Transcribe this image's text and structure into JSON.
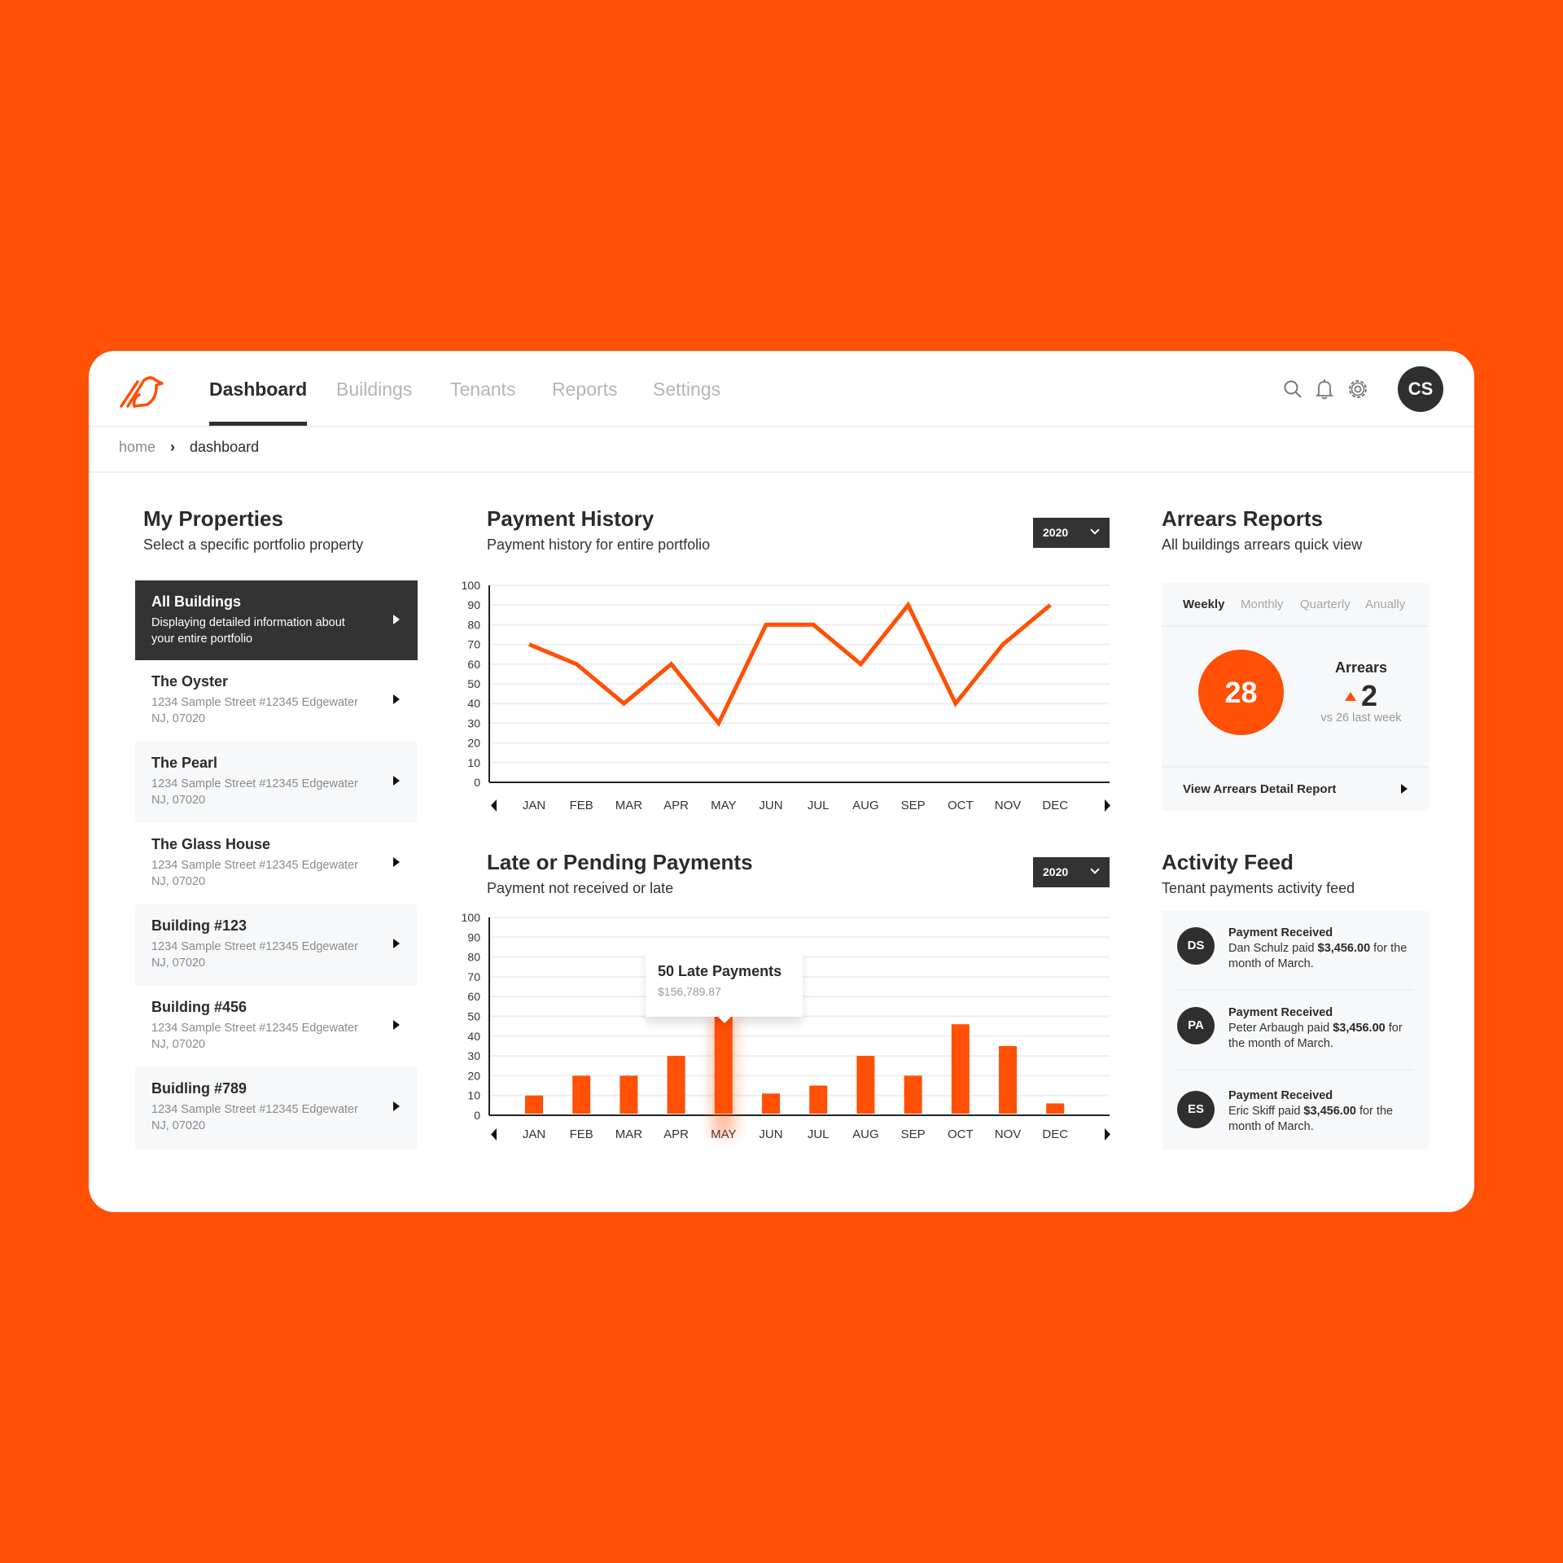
{
  "nav": {
    "tabs": [
      "Dashboard",
      "Buildings",
      "Tenants",
      "Reports",
      "Settings"
    ],
    "active": "Dashboard",
    "avatar": "CS",
    "icons": [
      "search-icon",
      "bell-icon",
      "gear-icon"
    ]
  },
  "breadcrumb": {
    "home": "home",
    "current": "dashboard"
  },
  "properties": {
    "title": "My Properties",
    "subtitle": "Select a specific portfolio property",
    "items": [
      {
        "name": "All Buildings",
        "desc": "Displaying detailed information about your entire portfolio"
      },
      {
        "name": "The Oyster",
        "desc": "1234 Sample Street #12345 Edgewater NJ, 07020"
      },
      {
        "name": "The Pearl",
        "desc": "1234 Sample Street #12345 Edgewater NJ, 07020"
      },
      {
        "name": "The Glass House",
        "desc": "1234 Sample Street #12345 Edgewater NJ, 07020"
      },
      {
        "name": "Building #123",
        "desc": "1234 Sample Street #12345 Edgewater NJ, 07020"
      },
      {
        "name": "Building #456",
        "desc": "1234 Sample Street #12345 Edgewater NJ, 07020"
      },
      {
        "name": "Buidling #789",
        "desc": "1234 Sample Street #12345 Edgewater NJ, 07020"
      }
    ]
  },
  "payment_history": {
    "title": "Payment History",
    "subtitle": "Payment history for entire portfolio",
    "year": "2020"
  },
  "late_payments": {
    "title": "Late or Pending Payments",
    "subtitle": "Payment not received or late",
    "year": "2020",
    "tooltip": {
      "title": "50 Late Payments",
      "amount": "$156,789.87"
    }
  },
  "arrears": {
    "title": "Arrears Reports",
    "subtitle": "All buildings arrears quick view",
    "tabs": [
      "Weekly",
      "Monthly",
      "Quarterly",
      "Anually"
    ],
    "active_tab": "Weekly",
    "count": "28",
    "label": "Arrears",
    "delta": "2",
    "comparison": "vs 26 last week",
    "link": "View Arrears Detail Report"
  },
  "activity": {
    "title": "Activity Feed",
    "subtitle": "Tenant payments activity feed",
    "items": [
      {
        "initials": "DS",
        "title": "Payment Received",
        "name": "Dan Schulz paid",
        "amount": "$3,456.00",
        "suffix": "for the month of March."
      },
      {
        "initials": "PA",
        "title": "Payment Received",
        "name": "Peter Arbaugh paid",
        "amount": "$3,456.00",
        "suffix": "for the month of March."
      },
      {
        "initials": "ES",
        "title": "Payment Received",
        "name": "Eric Skiff paid",
        "amount": "$3,456.00",
        "suffix": "for the month of March."
      }
    ]
  },
  "colors": {
    "accent": "#ff5005",
    "dark": "#333333"
  },
  "chart_data": [
    {
      "type": "line",
      "categories": [
        "JAN",
        "FEB",
        "MAR",
        "APR",
        "MAY",
        "JUN",
        "JUL",
        "AUG",
        "SEP",
        "OCT",
        "NOV",
        "DEC"
      ],
      "values": [
        70,
        60,
        40,
        60,
        30,
        80,
        80,
        60,
        90,
        40,
        70,
        90
      ],
      "ylim": [
        0,
        100
      ],
      "yticks": [
        0,
        10,
        20,
        30,
        40,
        50,
        60,
        70,
        80,
        90,
        100
      ],
      "grid": true
    },
    {
      "type": "bar",
      "categories": [
        "JAN",
        "FEB",
        "MAR",
        "APR",
        "MAY",
        "JUN",
        "JUL",
        "AUG",
        "SEP",
        "OCT",
        "NOV",
        "DEC"
      ],
      "values": [
        10,
        20,
        20,
        30,
        50,
        11,
        15,
        30,
        20,
        46,
        35,
        6
      ],
      "ylim": [
        0,
        100
      ],
      "yticks": [
        0,
        10,
        20,
        30,
        40,
        50,
        60,
        70,
        80,
        90,
        100
      ],
      "grid": true,
      "highlight": "MAY"
    }
  ]
}
